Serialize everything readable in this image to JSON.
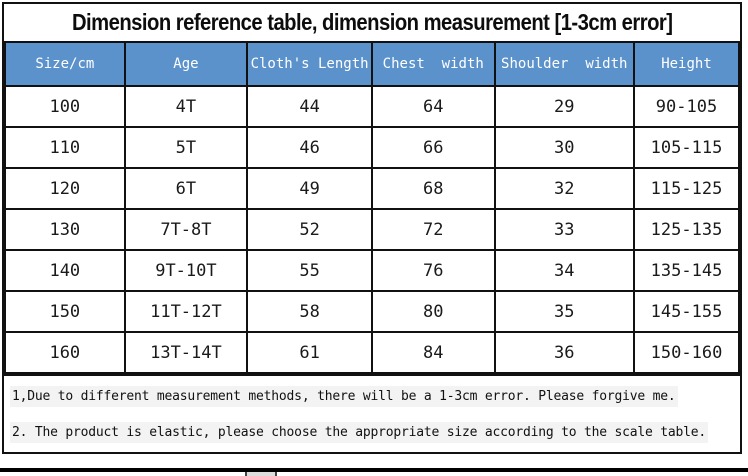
{
  "chart_data": {
    "type": "table",
    "title": "Dimension reference table, dimension measurement [1-3cm error]",
    "columns": [
      "Size/cm",
      "Age",
      "Cloth's Length",
      "Chest  width",
      "Shoulder  width",
      "Height"
    ],
    "rows": [
      [
        "100",
        "4T",
        "44",
        "64",
        "29",
        "90-105"
      ],
      [
        "110",
        "5T",
        "46",
        "66",
        "30",
        "105-115"
      ],
      [
        "120",
        "6T",
        "49",
        "68",
        "32",
        "115-125"
      ],
      [
        "130",
        "7T-8T",
        "52",
        "72",
        "33",
        "125-135"
      ],
      [
        "140",
        "9T-10T",
        "55",
        "76",
        "34",
        "135-145"
      ],
      [
        "150",
        "11T-12T",
        "58",
        "80",
        "35",
        "145-155"
      ],
      [
        "160",
        "13T-14T",
        "61",
        "84",
        "36",
        "150-160"
      ]
    ],
    "notes": [
      "1,Due to different measurement methods, there will be a 1-3cm error. Please forgive me.",
      "2. The product is elastic, please choose the appropriate size according to the scale table."
    ],
    "column_widths_percent": [
      16.3,
      16.7,
      17.0,
      16.7,
      19.0,
      14.3
    ]
  },
  "colors": {
    "header_bg": "#5B92CB",
    "header_text": "#FFFFFF",
    "border": "#111111"
  }
}
